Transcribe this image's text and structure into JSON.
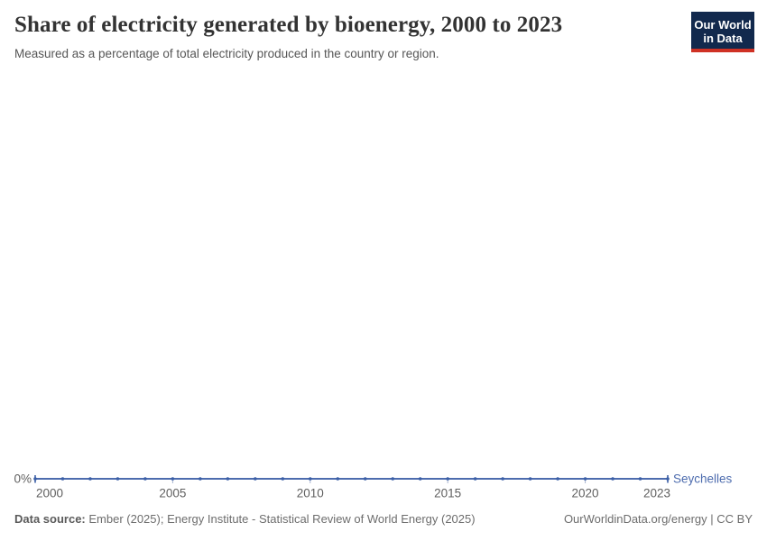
{
  "header": {
    "title": "Share of electricity generated by bioenergy, 2000 to 2023",
    "subtitle": "Measured as a percentage of total electricity produced in the country or region."
  },
  "logo": {
    "line1": "Our World",
    "line2": "in Data",
    "bg_color": "#12294d",
    "accent_color": "#cf3124"
  },
  "chart_data": {
    "type": "line",
    "title": "Share of electricity generated by bioenergy, 2000 to 2023",
    "x": [
      2000,
      2001,
      2002,
      2003,
      2004,
      2005,
      2006,
      2007,
      2008,
      2009,
      2010,
      2011,
      2012,
      2013,
      2014,
      2015,
      2016,
      2017,
      2018,
      2019,
      2020,
      2021,
      2022,
      2023
    ],
    "series": [
      {
        "name": "Seychelles",
        "color": "#4d6cae",
        "marker_color": "#3a5ea6",
        "values": [
          0,
          0,
          0,
          0,
          0,
          0,
          0,
          0,
          0,
          0,
          0,
          0,
          0,
          0,
          0,
          0,
          0,
          0,
          0,
          0,
          0,
          0,
          0,
          0
        ]
      }
    ],
    "x_ticks": [
      2000,
      2005,
      2010,
      2015,
      2020,
      2023
    ],
    "y_ticks": [
      {
        "value": 0,
        "label": "0%"
      }
    ],
    "ylim": [
      0,
      0
    ],
    "grid": false,
    "legend_position": "right-of-line-end",
    "axis_label_color": "#606060",
    "tick_color": "#a6b3cf"
  },
  "footer": {
    "source_label": "Data source:",
    "source_text": " Ember (2025); Energy Institute - Statistical Review of World Energy (2025)",
    "credit": "OurWorldinData.org/energy | CC BY"
  }
}
